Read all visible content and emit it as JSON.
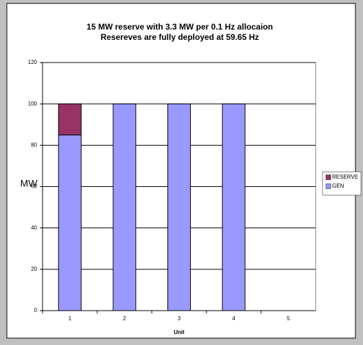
{
  "chart_data": {
    "type": "bar",
    "stacked": true,
    "title": [
      "15 MW reserve with 3.3 MW per 0.1 Hz allocaion",
      "Resereves are fully deployed at 59.65 Hz"
    ],
    "xlabel": "Unit",
    "ylabel": "MW",
    "categories": [
      "1",
      "2",
      "3",
      "4",
      "5"
    ],
    "series": [
      {
        "name": "GEN",
        "color": "#9999ff",
        "values": [
          85,
          100,
          100,
          100,
          0
        ]
      },
      {
        "name": "RESERVE",
        "color": "#993366",
        "values": [
          15,
          0,
          0,
          0,
          0
        ]
      }
    ],
    "ylim": [
      0,
      120
    ],
    "yticks": [
      0,
      20,
      40,
      60,
      80,
      100,
      120
    ],
    "grid": true,
    "legend": "right"
  }
}
